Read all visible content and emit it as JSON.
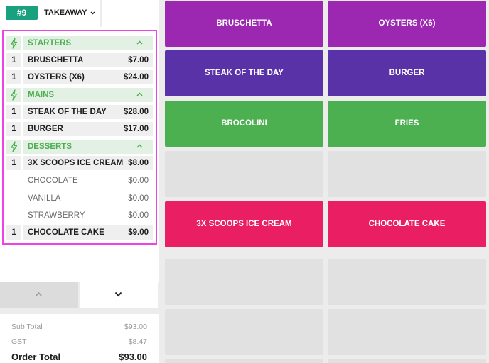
{
  "header": {
    "order_number": "#9",
    "order_type": "TAKEAWAY"
  },
  "order": {
    "categories": [
      {
        "name": "STARTERS"
      },
      {
        "name": "MAINS"
      },
      {
        "name": "DESSERTS"
      }
    ],
    "lines": [
      {
        "qty": "1",
        "name": "BRUSCHETTA",
        "price": "$7.00"
      },
      {
        "qty": "1",
        "name": "OYSTERS (X6)",
        "price": "$24.00"
      },
      {
        "qty": "1",
        "name": "STEAK OF THE DAY",
        "price": "$28.00"
      },
      {
        "qty": "1",
        "name": "BURGER",
        "price": "$17.00"
      },
      {
        "qty": "1",
        "name": "3X SCOOPS ICE CREAM",
        "price": "$8.00"
      },
      {
        "qty": "",
        "name": "CHOCOLATE",
        "price": "$0.00"
      },
      {
        "qty": "",
        "name": "VANILLA",
        "price": "$0.00"
      },
      {
        "qty": "",
        "name": "STRAWBERRY",
        "price": "$0.00"
      },
      {
        "qty": "1",
        "name": "CHOCOLATE CAKE",
        "price": "$9.00"
      }
    ]
  },
  "totals": {
    "subtotal_label": "Sub Total",
    "subtotal_value": "$93.00",
    "gst_label": "GST",
    "gst_value": "$8.47",
    "total_label": "Order Total",
    "total_value": "$93.00"
  },
  "products": [
    {
      "label": "BRUSCHETTA",
      "color": "#9c27b0"
    },
    {
      "label": "OYSTERS (X6)",
      "color": "#9c27b0"
    },
    {
      "label": "STEAK OF THE DAY",
      "color": "#5a32a8"
    },
    {
      "label": "BURGER",
      "color": "#5a32a8"
    },
    {
      "label": "BROCOLINI",
      "color": "#4caf50"
    },
    {
      "label": "FRIES",
      "color": "#4caf50"
    },
    {
      "label": "",
      "color": ""
    },
    {
      "label": "",
      "color": ""
    },
    {
      "label": "3X SCOOPS ICE CREAM",
      "color": "#e91e63"
    },
    {
      "label": "CHOCOLATE CAKE",
      "color": "#e91e63"
    }
  ],
  "colors": {
    "accent": "#19a07f",
    "category_green": "#4caf50",
    "highlight": "#ee44e6"
  }
}
